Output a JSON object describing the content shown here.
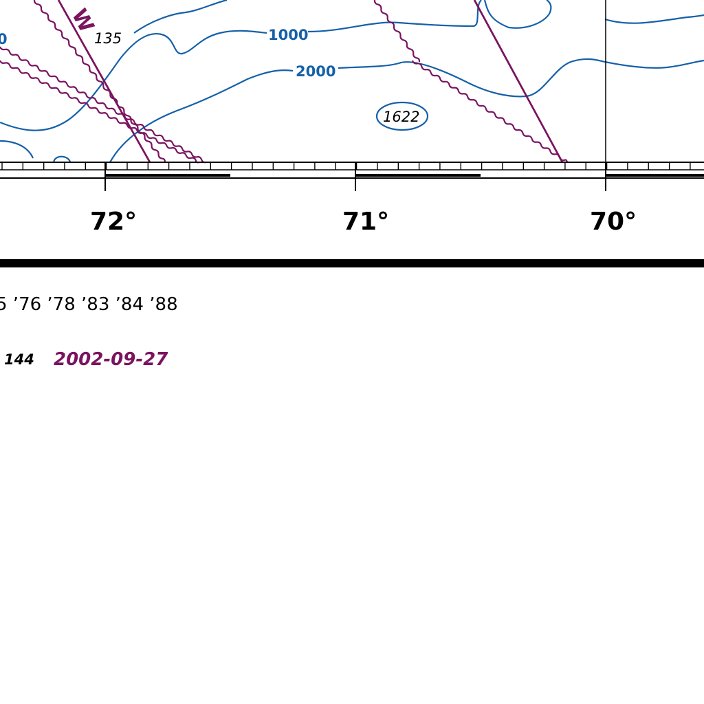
{
  "colors": {
    "contour": "#1560a8",
    "cable": "#7a1460",
    "ink": "#000000",
    "paper": "#ffffff"
  },
  "contours": {
    "label_1000": "1000",
    "label_2000": "2000",
    "partial_label_left": "0"
  },
  "soundings": {
    "s1": "135",
    "s2": "1622"
  },
  "feature_letter": "W",
  "longitude_labels": {
    "lon_72": "72°",
    "lon_71": "71°",
    "lon_70": "70°"
  },
  "footer": {
    "years": "5 ’76 ’78 ’83 ’84 ’88",
    "edition_number": "144",
    "edition_date": "2002-09-27"
  }
}
